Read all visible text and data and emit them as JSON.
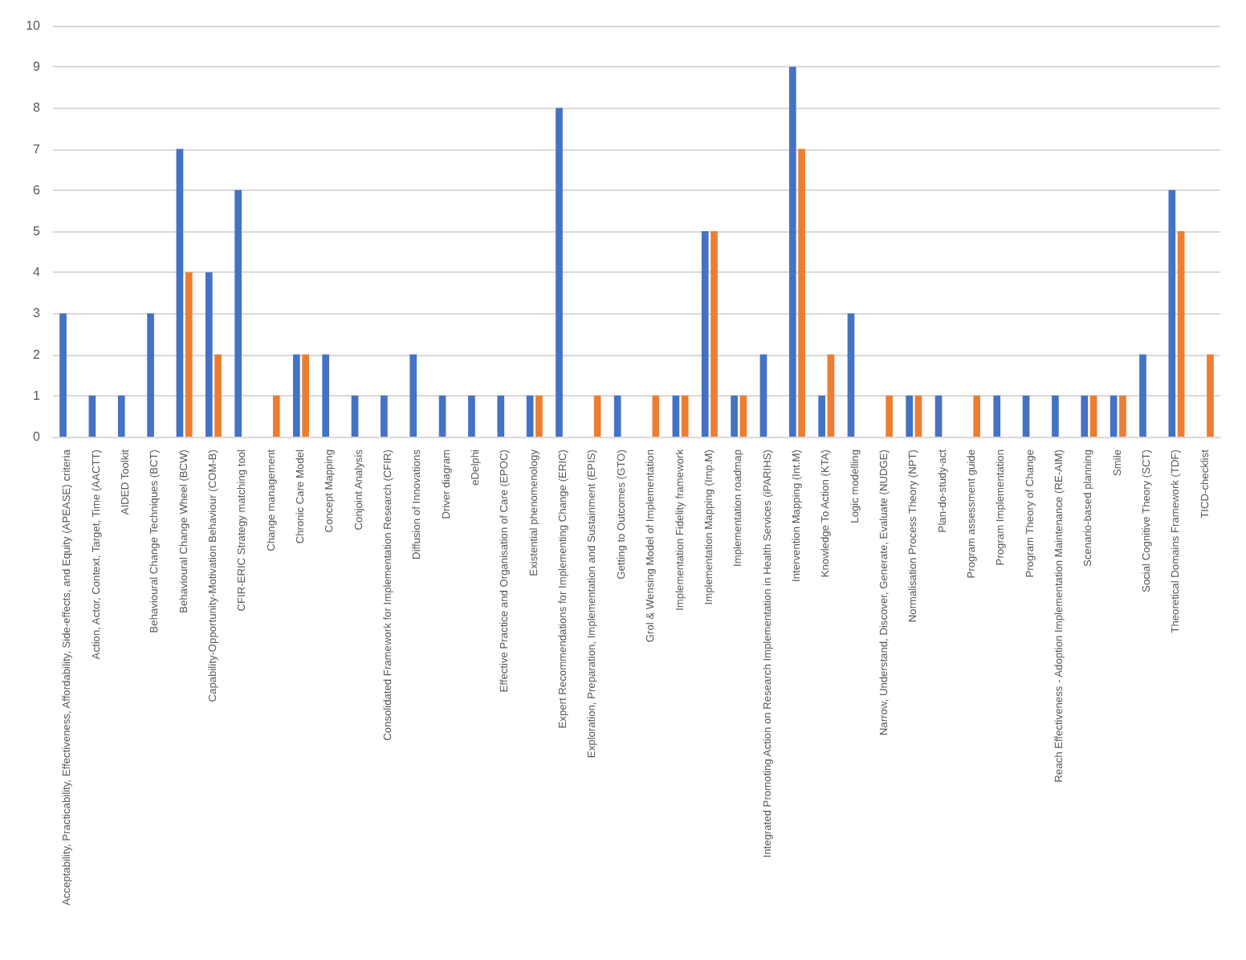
{
  "chart_data": {
    "type": "bar",
    "categories": [
      "Acceptability, Practicability, Effectiveness, Affordability, Side-effects, and Equity (APEASE) criteria",
      "Action, Actor, Context, Target, Time (AACTT)",
      "AIDED Toolkit",
      "Behavioural Change Techniques (BCT)",
      "Behavioural Change Wheel (BCW)",
      "Capability-Opportunity-Motivation Behaviour (COM-B)",
      "CFIR-ERIC Strategy matching tool",
      "Change management",
      "Chronic Care Model",
      "Concept Mapping",
      "Conjoint Analysis",
      "Consolidated Framework for Implementation Research (CFIR)",
      "Diffusion of Innovations",
      "Driver diagram",
      "eDelphi",
      "Effective Practice and Organisation of Care (EPOC)",
      "Existential phenomenology",
      "Expert Recommendations for Implementing Change (ERIC)",
      "Exploration, Preparation, Implementation and Sustainment (EPIS)",
      "Getting to Outcomes (GTO)",
      "Grol & Wensing Model of Implementation",
      "Implementation Fidelity framework",
      "Implementation Mapping (Imp.M)",
      "Implementation roadmap",
      "Integrated Promoting Action on Research Implementation in Health Services (iPARIHS)",
      "Intervention Mapping (Int.M)",
      "Knowledge To Action (KTA)",
      "Logic modelling",
      "Narrow, Understand, Discover, Generate, Evaluate (NUDGE)",
      "Normalisation Process Theory (NPT)",
      "Plan-do-study-act",
      "Program assessment guide",
      "Program Implementation",
      "Program Theory of Change",
      "Reach Effectiveness - Adoption Implementation Maintenance (RE-AIM)",
      "Scenario-based planning",
      "Smile",
      "Social Cognitive Theory (SCT)",
      "Theoretical Domains Framework (TDF)",
      "TICD-checklist"
    ],
    "series": [
      {
        "color": "#4472c4",
        "values": [
          3,
          1,
          1,
          3,
          7,
          4,
          6,
          0,
          2,
          2,
          1,
          1,
          2,
          1,
          1,
          1,
          1,
          8,
          0,
          1,
          0,
          1,
          5,
          1,
          2,
          9,
          1,
          3,
          0,
          1,
          1,
          0,
          1,
          1,
          1,
          1,
          1,
          2,
          6,
          0
        ]
      },
      {
        "color": "#ed7d31",
        "values": [
          0,
          0,
          0,
          0,
          4,
          2,
          0,
          1,
          2,
          0,
          0,
          0,
          0,
          0,
          0,
          0,
          1,
          0,
          1,
          0,
          1,
          1,
          5,
          1,
          0,
          7,
          2,
          0,
          1,
          1,
          0,
          1,
          0,
          0,
          0,
          1,
          1,
          0,
          5,
          2
        ]
      }
    ],
    "ylim": [
      0,
      10
    ],
    "yticks": [
      0,
      1,
      2,
      3,
      4,
      5,
      6,
      7,
      8,
      9,
      10
    ],
    "grid": "y"
  }
}
